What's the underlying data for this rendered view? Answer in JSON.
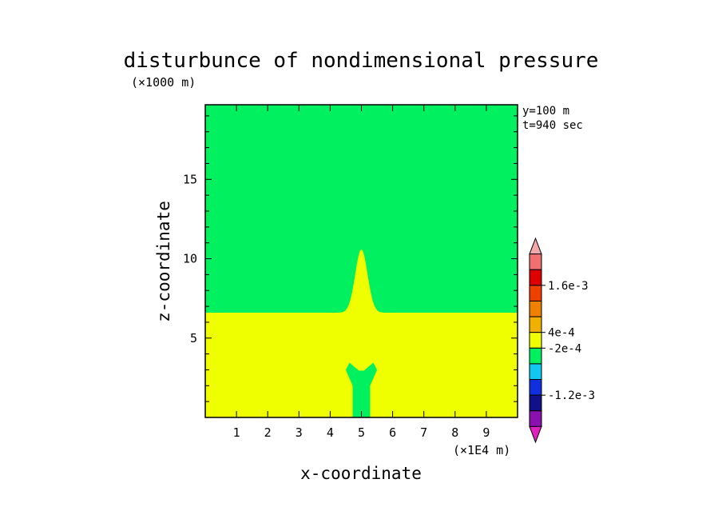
{
  "chart_data": {
    "type": "heatmap",
    "title": "disturbunce of nondimensional pressure",
    "xlabel": "x-coordinate",
    "ylabel": "z-coordinate",
    "x_unit": "(×1E4 m)",
    "y_unit": "(×1000 m)",
    "annotations": [
      "y=100 m",
      "t=940 sec"
    ],
    "xlim": [
      0,
      10
    ],
    "ylim": [
      0,
      19.7
    ],
    "x_ticks": [
      "1",
      "2",
      "3",
      "4",
      "5",
      "6",
      "7",
      "8",
      "9"
    ],
    "y_ticks": [
      "5",
      "10",
      "15"
    ],
    "colorbar": {
      "levels": [
        {
          "color": "#e020c0"
        },
        {
          "color": "#8a10b0"
        },
        {
          "color": "#10108a"
        },
        {
          "color": "#1030e0"
        },
        {
          "color": "#10c8f0"
        },
        {
          "color": "#00f060"
        },
        {
          "color": "#f0ff00"
        },
        {
          "color": "#f0b000"
        },
        {
          "color": "#f08000"
        },
        {
          "color": "#f04000"
        },
        {
          "color": "#e00000"
        },
        {
          "color": "#f07070"
        },
        {
          "color": "#f0a8a8"
        }
      ],
      "labels": [
        "1.6e-3",
        "4e-4",
        "-2e-4",
        "-1.2e-3"
      ]
    },
    "regions": [
      {
        "color": "#00f060",
        "description": "upper layer, z above ~6.6"
      },
      {
        "color": "#f0ff00",
        "description": "lower layer, z below ~6.6"
      },
      {
        "color": "#f0ff00",
        "description": "dome centred at x=5 rising to z~10.6"
      },
      {
        "color": "#00f060",
        "description": "plume near x=5 from z=0 to ~3.4"
      }
    ]
  }
}
